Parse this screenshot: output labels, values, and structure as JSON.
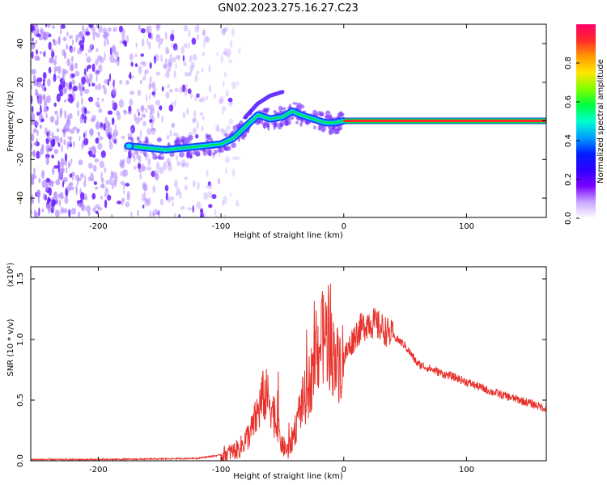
{
  "title": "GN02.2023.275.16.27.C23",
  "colors": {
    "frame": "#000000",
    "snr_line": "#e8332d",
    "cloud": "#7a33ff",
    "track_center": "#ff2a2a",
    "track_edge": "#00e040",
    "track_core": "#2040ff"
  },
  "colormap": [
    "#ffffff",
    "#c9a7ff",
    "#7a00ff",
    "#2d00ff",
    "#0020ff",
    "#00a0ff",
    "#00ffd0",
    "#00ff40",
    "#7fff00",
    "#ffe600",
    "#ff9900",
    "#ff2a2a",
    "#ff0066"
  ],
  "colorbar": {
    "label": "Normalized spectral amplitude",
    "ticks": [
      "0.0",
      "0.2",
      "0.4",
      "0.6",
      "0.8"
    ],
    "tick_values": [
      0.0,
      0.2,
      0.4,
      0.6,
      0.8
    ],
    "range": [
      0,
      1
    ]
  },
  "chart_data": [
    {
      "type": "heatmap",
      "name": "spectrogram",
      "xlabel": "Height of straight line (km)",
      "ylabel": "Frequency (Hz)",
      "xlim": [
        -255,
        165
      ],
      "ylim": [
        -50,
        50
      ],
      "xticks": [
        -200,
        -100,
        0,
        100
      ],
      "xtick_labels": [
        "-200",
        "-100",
        "0",
        "100"
      ],
      "yticks": [
        -40,
        -20,
        0,
        20,
        40
      ],
      "ytick_labels": [
        "-40",
        "-20",
        "0",
        "20",
        "40"
      ],
      "noise_region_x": [
        -255,
        -95
      ],
      "track": {
        "x": [
          -175,
          -145,
          -130,
          -115,
          -100,
          -90,
          -80,
          -70,
          -60,
          -50,
          -42,
          -35,
          -25,
          -15,
          -8,
          0,
          165
        ],
        "y": [
          -13,
          -15,
          -14,
          -13,
          -12,
          -9,
          -3,
          3,
          1,
          2,
          5,
          3,
          1,
          -1,
          -1,
          0,
          0
        ]
      },
      "branch": {
        "x": [
          -80,
          -70,
          -60,
          -50
        ],
        "y": [
          2,
          9,
          13,
          15
        ]
      },
      "tone_line": {
        "x": [
          0,
          165
        ],
        "y": [
          0,
          0
        ]
      }
    },
    {
      "type": "line",
      "name": "snr",
      "xlabel": "Height of straight line (km)",
      "ylabel": "SNR (10 * v/v)",
      "yscale_note": "(x10⁴)",
      "xlim": [
        -255,
        165
      ],
      "ylim": [
        0,
        1.6
      ],
      "xticks": [
        -200,
        -100,
        0,
        100
      ],
      "xtick_labels": [
        "-200",
        "-100",
        "0",
        "100"
      ],
      "yticks": [
        0.0,
        0.5,
        1.0,
        1.5
      ],
      "ytick_labels": [
        "0.0",
        "0.5",
        "1.0",
        "1.5"
      ],
      "x": [
        -255,
        -200,
        -150,
        -120,
        -105,
        -95,
        -85,
        -75,
        -65,
        -60,
        -55,
        -50,
        -45,
        -40,
        -35,
        -30,
        -25,
        -20,
        -15,
        -10,
        -5,
        0,
        5,
        10,
        15,
        20,
        25,
        30,
        40,
        50,
        60,
        70,
        80,
        90,
        100,
        110,
        120,
        130,
        140,
        150,
        165
      ],
      "y": [
        0.01,
        0.01,
        0.015,
        0.02,
        0.04,
        0.06,
        0.1,
        0.25,
        0.55,
        0.5,
        0.3,
        0.12,
        0.08,
        0.25,
        0.45,
        0.55,
        0.75,
        0.95,
        1.05,
        0.9,
        0.8,
        0.85,
        0.95,
        1.05,
        1.1,
        1.15,
        1.13,
        1.1,
        1.03,
        0.95,
        0.8,
        0.76,
        0.72,
        0.69,
        0.65,
        0.61,
        0.57,
        0.54,
        0.51,
        0.48,
        0.43
      ]
    }
  ]
}
